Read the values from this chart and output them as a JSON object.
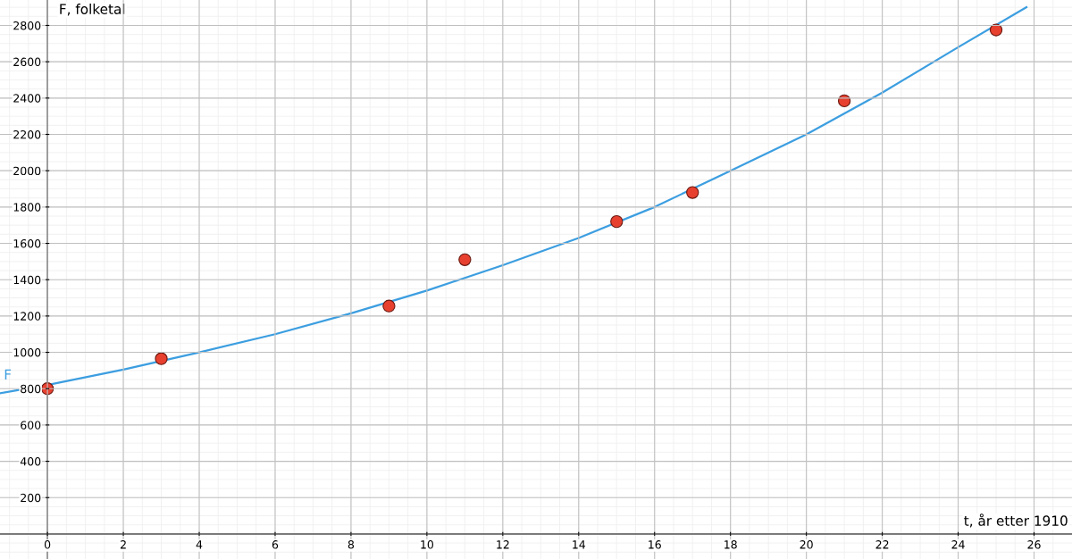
{
  "chart_data": {
    "type": "scatter",
    "xlabel": "t, år etter 1910",
    "ylabel": "F, folketal",
    "series": [
      {
        "marker": "circle",
        "color": "#e8402f",
        "x": [
          0,
          3,
          9,
          11,
          15,
          17,
          21,
          25
        ],
        "values": [
          800,
          965,
          1255,
          1510,
          1720,
          1880,
          2385,
          2775
        ]
      },
      {
        "type": "line",
        "marker": "none",
        "name": "F",
        "color": "#3c9ee0",
        "x": [
          -1.25,
          0,
          2,
          4,
          6,
          8,
          10,
          12,
          14,
          16,
          18,
          20,
          22,
          24,
          25.8
        ],
        "values": [
          775,
          820,
          905,
          1000,
          1100,
          1215,
          1340,
          1480,
          1630,
          1800,
          2000,
          2200,
          2430,
          2680,
          2900
        ]
      }
    ],
    "xlim": [
      -1.25,
      27
    ],
    "ylim": [
      -138,
      2940
    ],
    "xticks": [
      0,
      2,
      4,
      6,
      8,
      10,
      12,
      14,
      16,
      18,
      20,
      22,
      24,
      26
    ],
    "yticks": [
      200,
      400,
      600,
      800,
      1000,
      1200,
      1400,
      1600,
      1800,
      2000,
      2200,
      2400,
      2600,
      2800
    ],
    "grid": true
  }
}
